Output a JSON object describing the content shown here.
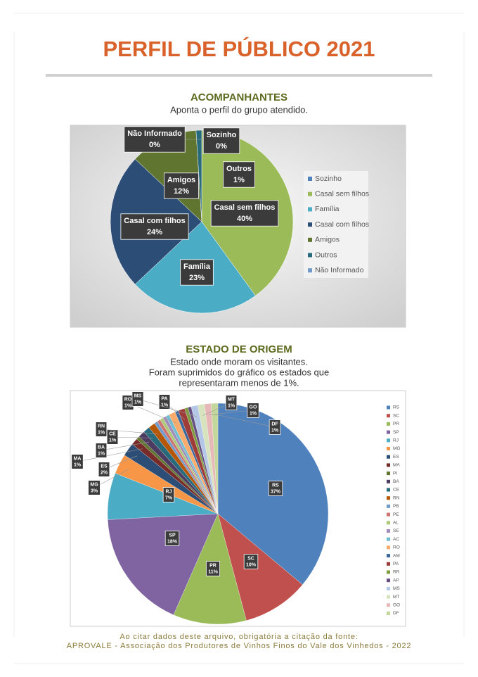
{
  "title": "PERFIL DE PÚBLICO 2021",
  "chart_data": [
    {
      "type": "pie",
      "title": "ACOMPANHANTES",
      "subtitle": [
        "Aponta o perfil do grupo atendido."
      ],
      "categories": [
        "Sozinho",
        "Casal sem filhos",
        "Família",
        "Casal com filhos",
        "Amigos",
        "Outros",
        "Não Informado"
      ],
      "values": [
        0,
        40,
        23,
        24,
        12,
        1,
        0
      ],
      "value_labels": [
        "0%",
        "40%",
        "23%",
        "24%",
        "12%",
        "1%",
        "0%"
      ],
      "colors": [
        "#4f81bd",
        "#9bbb59",
        "#4bacc6",
        "#2c4d75",
        "#5f7530",
        "#276a7c",
        "#729aca"
      ]
    },
    {
      "type": "pie",
      "title": "ESTADO DE ORIGEM",
      "subtitle": [
        "Estado onde moram os visitantes.",
        "Foram suprimidos do gráfico os estados que",
        "representaram menos de 1%."
      ],
      "categories": [
        "RS",
        "SC",
        "PR",
        "SP",
        "RJ",
        "MG",
        "ES",
        "MA",
        "PI",
        "BA",
        "CE",
        "RN",
        "PB",
        "PE",
        "AL",
        "SE",
        "AC",
        "RO",
        "AM",
        "PA",
        "RR",
        "AP",
        "MS",
        "MT",
        "GO",
        "DF"
      ],
      "values": [
        37,
        10,
        11,
        18,
        7,
        3,
        2,
        1,
        0.5,
        1,
        1,
        1,
        0.5,
        0.5,
        0.5,
        0.5,
        0.5,
        1,
        0.5,
        1,
        0.5,
        0.5,
        1,
        1,
        1,
        1
      ],
      "value_labels": [
        "37%",
        "10%",
        "11%",
        "18%",
        "7%",
        "3%",
        "2%",
        "1%",
        null,
        "1%",
        "1%",
        "1%",
        null,
        null,
        null,
        null,
        null,
        "1%",
        null,
        "1%",
        null,
        null,
        "1%",
        "1%",
        "1%",
        "1%"
      ],
      "colors": [
        "#4f81bd",
        "#c0504d",
        "#9bbb59",
        "#8064a2",
        "#4bacc6",
        "#f79646",
        "#2c4d75",
        "#772c2a",
        "#5f7530",
        "#4d3b62",
        "#276a7c",
        "#b65708",
        "#729aca",
        "#cd7371",
        "#afc97a",
        "#a18cbc",
        "#6fbdd1",
        "#f9ab6b",
        "#3a679c",
        "#9e3b38",
        "#7e9c40",
        "#664f82",
        "#b4c7e7",
        "#d6e3bc",
        "#e6b9b8",
        "#c4d79b"
      ]
    }
  ],
  "footer": [
    "Ao citar dados deste arquivo, obrigatória a citação da fonte:",
    "APROVALE - Associação dos Produtores de Vinhos Finos do Vale dos Vinhedos - 2022"
  ]
}
